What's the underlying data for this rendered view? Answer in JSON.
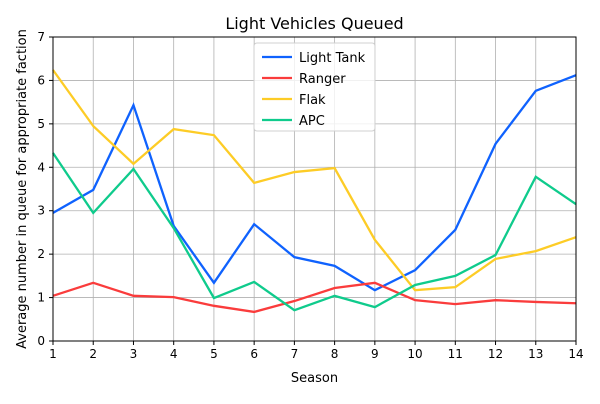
{
  "chart_data": {
    "type": "line",
    "title": "Light Vehicles Queued",
    "xlabel": "Season",
    "ylabel": "Average number in queue for appropriate faction",
    "xlim": [
      1,
      14
    ],
    "ylim": [
      0,
      7
    ],
    "xticks": [
      1,
      2,
      3,
      4,
      5,
      6,
      7,
      8,
      9,
      10,
      11,
      12,
      13,
      14
    ],
    "yticks": [
      0,
      1,
      2,
      3,
      4,
      5,
      6,
      7
    ],
    "grid": true,
    "legend_position": "top-center",
    "x": [
      1,
      2,
      3,
      4,
      5,
      6,
      7,
      8,
      9,
      10,
      11,
      12,
      13,
      14
    ],
    "series": [
      {
        "name": "Light Tank",
        "color": "#0f62fe",
        "values": [
          2.95,
          3.48,
          5.43,
          2.65,
          1.34,
          2.69,
          1.93,
          1.73,
          1.17,
          1.63,
          2.56,
          4.54,
          5.76,
          6.12
        ]
      },
      {
        "name": "Ranger",
        "color": "#fa3c3c",
        "values": [
          1.04,
          1.34,
          1.04,
          1.01,
          0.81,
          0.67,
          0.92,
          1.22,
          1.34,
          0.94,
          0.85,
          0.94,
          0.9,
          0.87
        ]
      },
      {
        "name": "Flak",
        "color": "#fdcc26",
        "values": [
          6.24,
          4.95,
          4.08,
          4.88,
          4.74,
          3.64,
          3.89,
          3.98,
          2.33,
          1.17,
          1.24,
          1.89,
          2.07,
          2.39
        ]
      },
      {
        "name": "APC",
        "color": "#0fcb8c",
        "values": [
          4.33,
          2.95,
          3.96,
          2.6,
          0.99,
          1.36,
          0.71,
          1.04,
          0.78,
          1.29,
          1.5,
          1.98,
          3.78,
          3.15
        ]
      }
    ]
  }
}
